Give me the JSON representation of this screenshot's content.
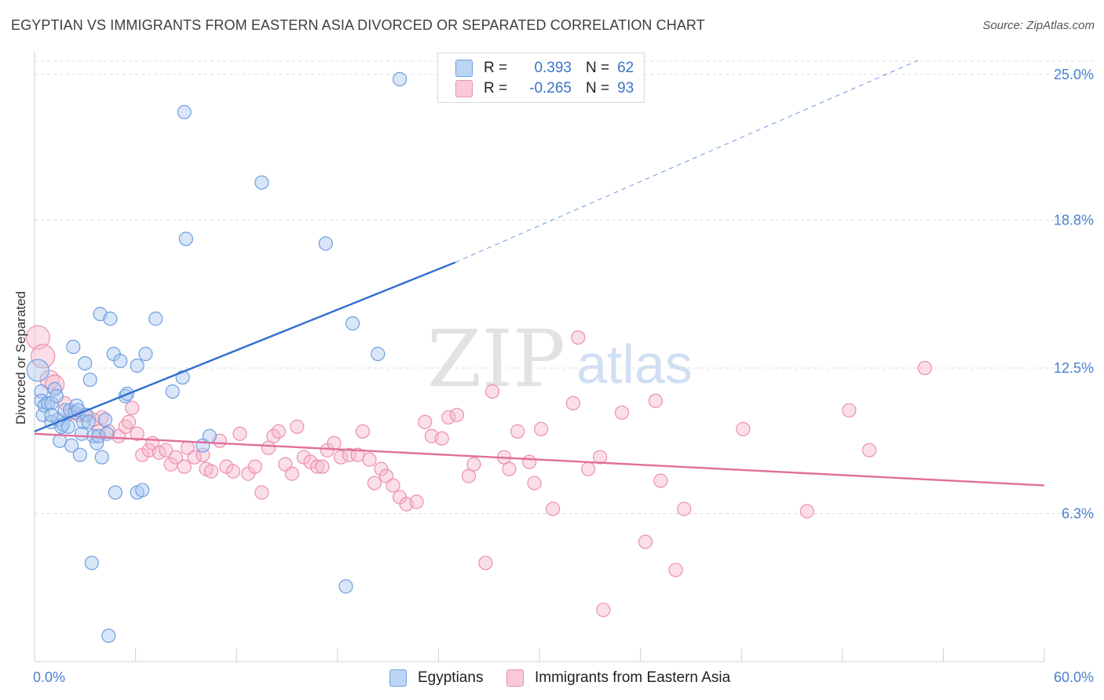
{
  "header": {
    "title": "EGYPTIAN VS IMMIGRANTS FROM EASTERN ASIA DIVORCED OR SEPARATED CORRELATION CHART",
    "source": "Source: ZipAtlas.com"
  },
  "legend": {
    "rows": [
      {
        "r_label": "R =",
        "r_value": "0.393",
        "n_label": "N =",
        "n_value": "62"
      },
      {
        "r_label": "R =",
        "r_value": "-0.265",
        "n_label": "N =",
        "n_value": "93"
      }
    ]
  },
  "bottom_legend": {
    "egyptians": "Egyptians",
    "eastern_asia": "Immigrants from Eastern Asia"
  },
  "watermark": {
    "zip": "ZIP",
    "atlas": "atlas"
  },
  "colors": {
    "blue_fill": "#a9c8f0",
    "blue_stroke": "#6f9fe0",
    "blue_line": "#2f6fd0",
    "pink_fill": "#f7b9cc",
    "pink_stroke": "#eb8fae",
    "pink_line": "#e0709a",
    "grid": "#dcdcdc",
    "tick_text": "#4a7fd0"
  },
  "chart_data": {
    "type": "scatter",
    "title": "EGYPTIAN VS IMMIGRANTS FROM EASTERN ASIA DIVORCED OR SEPARATED CORRELATION CHART",
    "xlabel": "",
    "ylabel": "Divorced or Separated",
    "xlim": [
      0,
      60
    ],
    "ylim": [
      0,
      26
    ],
    "x_tick_labels": [
      "0.0%",
      "60.0%"
    ],
    "y_ticks": [
      6.3,
      12.5,
      18.8,
      25.0
    ],
    "y_tick_labels": [
      "6.3%",
      "12.5%",
      "18.8%",
      "25.0%"
    ],
    "grid": "horizontal dashed",
    "legend_position": "top-center",
    "series": [
      {
        "name": "Egyptians",
        "color": "#6f9fe0",
        "trend": {
          "x": [
            0,
            25
          ],
          "y": [
            9.8,
            17.0
          ],
          "dashed_to": [
            52.5,
            25.6
          ]
        },
        "points": [
          [
            0.2,
            12.4
          ],
          [
            0.4,
            11.5
          ],
          [
            0.4,
            11.1
          ],
          [
            0.5,
            10.5
          ],
          [
            0.6,
            10.9
          ],
          [
            0.8,
            11.0
          ],
          [
            1.0,
            11.0
          ],
          [
            1.0,
            10.2
          ],
          [
            1.2,
            11.6
          ],
          [
            1.3,
            11.3
          ],
          [
            1.4,
            10.3
          ],
          [
            1.5,
            9.4
          ],
          [
            1.6,
            10.0
          ],
          [
            1.7,
            10.1
          ],
          [
            1.8,
            10.7
          ],
          [
            2.0,
            10.0
          ],
          [
            2.1,
            10.7
          ],
          [
            2.2,
            9.2
          ],
          [
            2.3,
            13.4
          ],
          [
            2.4,
            10.6
          ],
          [
            2.5,
            10.9
          ],
          [
            2.6,
            10.7
          ],
          [
            2.7,
            8.8
          ],
          [
            2.8,
            9.7
          ],
          [
            2.9,
            10.2
          ],
          [
            3.0,
            12.7
          ],
          [
            3.1,
            10.5
          ],
          [
            3.2,
            10.2
          ],
          [
            3.3,
            12.0
          ],
          [
            3.5,
            9.6
          ],
          [
            3.7,
            9.3
          ],
          [
            3.8,
            9.6
          ],
          [
            3.9,
            14.8
          ],
          [
            4.0,
            8.7
          ],
          [
            4.2,
            10.3
          ],
          [
            4.3,
            9.7
          ],
          [
            4.5,
            14.6
          ],
          [
            4.7,
            13.1
          ],
          [
            4.8,
            7.2
          ],
          [
            5.1,
            12.8
          ],
          [
            5.4,
            11.3
          ],
          [
            5.5,
            11.4
          ],
          [
            6.1,
            12.6
          ],
          [
            6.1,
            7.2
          ],
          [
            6.4,
            7.3
          ],
          [
            6.6,
            13.1
          ],
          [
            7.2,
            14.6
          ],
          [
            8.2,
            11.5
          ],
          [
            8.8,
            12.1
          ],
          [
            9.0,
            18.0
          ],
          [
            10.0,
            9.2
          ],
          [
            10.4,
            9.6
          ],
          [
            13.5,
            20.4
          ],
          [
            17.3,
            17.8
          ],
          [
            18.9,
            14.4
          ],
          [
            20.4,
            13.1
          ],
          [
            21.7,
            24.8
          ],
          [
            8.9,
            23.4
          ],
          [
            3.4,
            4.2
          ],
          [
            18.5,
            3.2
          ],
          [
            4.4,
            1.1
          ],
          [
            1.0,
            10.5
          ]
        ]
      },
      {
        "name": "Immigrants from Eastern Asia",
        "color": "#eb8fae",
        "trend": {
          "x": [
            0,
            60
          ],
          "y": [
            9.7,
            7.5
          ]
        },
        "points": [
          [
            0.2,
            13.8
          ],
          [
            0.5,
            13.0
          ],
          [
            0.9,
            12.0
          ],
          [
            1.2,
            11.8
          ],
          [
            1.8,
            11.0
          ],
          [
            2.2,
            10.6
          ],
          [
            2.6,
            10.5
          ],
          [
            3.0,
            10.5
          ],
          [
            3.5,
            10.3
          ],
          [
            3.8,
            9.8
          ],
          [
            4.0,
            10.4
          ],
          [
            4.4,
            9.8
          ],
          [
            5.0,
            9.6
          ],
          [
            5.4,
            10.0
          ],
          [
            5.6,
            10.2
          ],
          [
            5.8,
            10.8
          ],
          [
            6.1,
            9.7
          ],
          [
            6.4,
            8.8
          ],
          [
            6.8,
            9.0
          ],
          [
            7.0,
            9.3
          ],
          [
            7.4,
            8.9
          ],
          [
            7.8,
            9.0
          ],
          [
            8.1,
            8.4
          ],
          [
            8.4,
            8.7
          ],
          [
            8.9,
            8.3
          ],
          [
            9.1,
            9.1
          ],
          [
            9.5,
            8.7
          ],
          [
            10.0,
            8.8
          ],
          [
            10.2,
            8.2
          ],
          [
            10.5,
            8.1
          ],
          [
            11.0,
            9.4
          ],
          [
            11.4,
            8.3
          ],
          [
            11.8,
            8.1
          ],
          [
            12.2,
            9.7
          ],
          [
            12.7,
            8.0
          ],
          [
            13.1,
            8.3
          ],
          [
            13.5,
            7.2
          ],
          [
            13.9,
            9.1
          ],
          [
            14.2,
            9.6
          ],
          [
            14.5,
            9.8
          ],
          [
            14.9,
            8.4
          ],
          [
            15.3,
            8.0
          ],
          [
            15.6,
            10.0
          ],
          [
            16.0,
            8.7
          ],
          [
            16.4,
            8.5
          ],
          [
            16.8,
            8.3
          ],
          [
            17.1,
            8.3
          ],
          [
            17.4,
            9.0
          ],
          [
            17.8,
            9.3
          ],
          [
            18.2,
            8.7
          ],
          [
            18.7,
            8.8
          ],
          [
            19.2,
            8.8
          ],
          [
            19.5,
            9.8
          ],
          [
            19.9,
            8.6
          ],
          [
            20.2,
            7.6
          ],
          [
            20.6,
            8.2
          ],
          [
            20.9,
            7.9
          ],
          [
            21.3,
            7.5
          ],
          [
            21.7,
            7.0
          ],
          [
            22.1,
            6.7
          ],
          [
            22.7,
            6.8
          ],
          [
            23.2,
            10.2
          ],
          [
            23.6,
            9.6
          ],
          [
            24.2,
            9.5
          ],
          [
            24.6,
            10.4
          ],
          [
            25.1,
            10.5
          ],
          [
            25.8,
            7.9
          ],
          [
            26.1,
            8.4
          ],
          [
            26.8,
            4.2
          ],
          [
            27.2,
            11.5
          ],
          [
            27.9,
            8.7
          ],
          [
            28.2,
            8.2
          ],
          [
            28.7,
            9.8
          ],
          [
            29.4,
            8.5
          ],
          [
            29.7,
            7.6
          ],
          [
            30.1,
            9.9
          ],
          [
            30.8,
            6.5
          ],
          [
            32.0,
            11.0
          ],
          [
            32.3,
            13.8
          ],
          [
            32.9,
            8.2
          ],
          [
            33.6,
            8.7
          ],
          [
            33.8,
            2.2
          ],
          [
            34.9,
            10.6
          ],
          [
            36.3,
            5.1
          ],
          [
            36.9,
            11.1
          ],
          [
            37.2,
            7.7
          ],
          [
            38.1,
            3.9
          ],
          [
            38.6,
            6.5
          ],
          [
            42.1,
            9.9
          ],
          [
            45.9,
            6.4
          ],
          [
            48.4,
            10.7
          ],
          [
            49.6,
            9.0
          ],
          [
            52.9,
            12.5
          ]
        ]
      }
    ]
  }
}
